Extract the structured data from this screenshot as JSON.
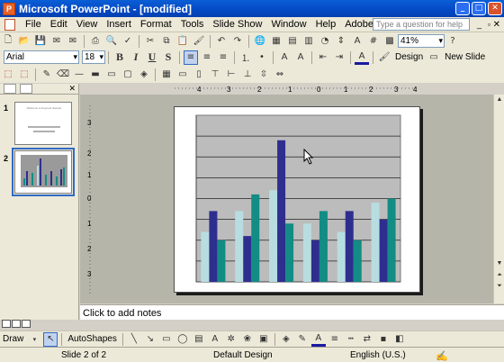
{
  "window": {
    "title": "Microsoft PowerPoint - [modified]",
    "app_icon": "P",
    "controls": [
      "minimize-icon",
      "maximize-icon",
      "close-icon"
    ]
  },
  "menu": {
    "items": [
      "File",
      "Edit",
      "View",
      "Insert",
      "Format",
      "Tools",
      "Slide Show",
      "Window",
      "Help",
      "Adobe PDF"
    ],
    "help_placeholder": "Type a question for help"
  },
  "standard_toolbar": {
    "zoom": "41%"
  },
  "formatting_toolbar": {
    "font": "Arial",
    "font_size": "18",
    "bold": "B",
    "italic": "I",
    "underline": "U",
    "shadow": "S",
    "design_label": "Design",
    "new_slide_label": "New Slide"
  },
  "slides_panel": {
    "slides": [
      {
        "number": "1",
        "title": "Welcome to Keynote Sample",
        "selected": false
      },
      {
        "number": "2",
        "title": "",
        "selected": true
      }
    ]
  },
  "notes": {
    "placeholder": "Click to add notes"
  },
  "drawing_toolbar": {
    "draw_label": "Draw",
    "autoshapes_label": "AutoShapes"
  },
  "status": {
    "slide": "Slide 2 of 2",
    "design": "Default Design",
    "language": "English (U.S.)"
  },
  "colors": {
    "series_1": "#b8dde0",
    "series_2": "#2e2e8f",
    "series_3": "#128c84",
    "plot_background": "#bcbcbc",
    "title_bar": "#0448c4"
  },
  "chart_data": {
    "type": "bar",
    "categories": [
      "",
      "",
      "",
      "",
      "",
      ""
    ],
    "series": [
      {
        "values": [
          12,
          17,
          22,
          14,
          12,
          19
        ]
      },
      {
        "values": [
          17,
          11,
          34,
          10,
          17,
          15
        ]
      },
      {
        "values": [
          10,
          21,
          14,
          17,
          10,
          20
        ]
      }
    ],
    "ylim": [
      0,
      40
    ],
    "grid": true
  }
}
